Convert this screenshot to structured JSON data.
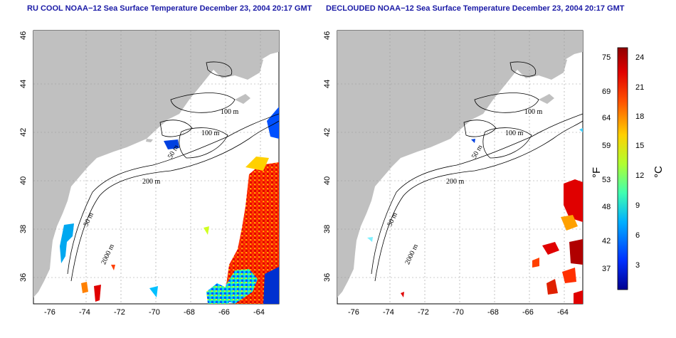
{
  "panels": [
    {
      "title": "RU COOL NOAA−12 Sea Surface Temperature December 23, 2004 20:17 GMT",
      "x_ticks": [
        "-76",
        "-74",
        "-72",
        "-70",
        "-68",
        "-66",
        "-64"
      ],
      "y_ticks": [
        "36",
        "38",
        "40",
        "42",
        "44",
        "46"
      ],
      "contour_labels": [
        "100 m",
        "100 m",
        "50 m",
        "200 m",
        "50 m",
        "2000 m"
      ]
    },
    {
      "title": "DECLOUDED NOAA−12 Sea Surface Temperature December 23, 2004 20:17 GMT",
      "x_ticks": [
        "-76",
        "-74",
        "-72",
        "-70",
        "-68",
        "-66",
        "-64"
      ],
      "y_ticks": [
        "36",
        "38",
        "40",
        "42",
        "44",
        "46"
      ],
      "contour_labels": [
        "100 m",
        "100 m",
        "50 m",
        "200 m",
        "50 m",
        "2000 m"
      ]
    }
  ],
  "colorbar": {
    "fahrenheit_ticks": [
      "75",
      "69",
      "64",
      "59",
      "53",
      "48",
      "42",
      "37"
    ],
    "celsius_ticks": [
      "24",
      "21",
      "18",
      "15",
      "12",
      "9",
      "6",
      "3"
    ],
    "unit_f": "°F",
    "unit_c": "°C"
  },
  "colors": {
    "land": "#c0c0c0",
    "title": "#1a1aa6",
    "scale": [
      "#0000a0",
      "#0040ff",
      "#00c8ff",
      "#40ff80",
      "#e0ff00",
      "#ffa000",
      "#ff2000",
      "#a00000"
    ]
  }
}
